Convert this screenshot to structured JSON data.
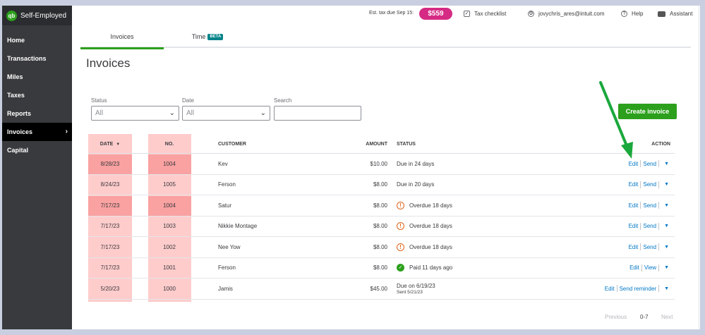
{
  "brand": {
    "name": "Self-Employed",
    "logo": "qb"
  },
  "sidebar": {
    "items": [
      {
        "label": "Home"
      },
      {
        "label": "Transactions"
      },
      {
        "label": "Miles"
      },
      {
        "label": "Taxes"
      },
      {
        "label": "Reports"
      },
      {
        "label": "Invoices",
        "active": true
      },
      {
        "label": "Capital"
      }
    ]
  },
  "topbar": {
    "est_tax_label": "Est. tax due Sep 15:",
    "est_tax_amount": "$559",
    "tax_checklist": "Tax checklist",
    "account_email": "jovychris_ares@intuit.com",
    "help": "Help",
    "assistant": "Assistant"
  },
  "tabs": {
    "invoices": "Invoices",
    "time": "Time",
    "time_badge": "BETA"
  },
  "page_title": "Invoices",
  "filters": {
    "status_label": "Status",
    "status_value": "All",
    "date_label": "Date",
    "date_value": "All",
    "search_label": "Search",
    "search_value": ""
  },
  "create_button": "Create invoice",
  "table": {
    "headers": {
      "date": "DATE",
      "no": "NO.",
      "customer": "CUSTOMER",
      "amount": "AMOUNT",
      "status": "STATUS",
      "action": "ACTION"
    },
    "rows": [
      {
        "date": "8/28/23",
        "no": "1004",
        "customer": "Kev",
        "amount": "$10.00",
        "status": "Due in 24 days",
        "icon": "",
        "a1": "Edit",
        "a2": "Send"
      },
      {
        "date": "8/24/23",
        "no": "1005",
        "customer": "Ferson",
        "amount": "$8.00",
        "status": "Due in 20 days",
        "icon": "",
        "a1": "Edit",
        "a2": "Send"
      },
      {
        "date": "7/17/23",
        "no": "1004",
        "customer": "Satur",
        "amount": "$8.00",
        "status": "Overdue 18 days",
        "icon": "warning",
        "a1": "Edit",
        "a2": "Send"
      },
      {
        "date": "7/17/23",
        "no": "1003",
        "customer": "Nikkie Montage",
        "amount": "$8.00",
        "status": "Overdue 18 days",
        "icon": "warning",
        "a1": "Edit",
        "a2": "Send"
      },
      {
        "date": "7/17/23",
        "no": "1002",
        "customer": "Nee Yow",
        "amount": "$8.00",
        "status": "Overdue 18 days",
        "icon": "warning",
        "a1": "Edit",
        "a2": "Send"
      },
      {
        "date": "7/17/23",
        "no": "1001",
        "customer": "Ferson",
        "amount": "$8.00",
        "status": "Paid 11 days ago",
        "icon": "check",
        "a1": "Edit",
        "a2": "View"
      },
      {
        "date": "5/20/23",
        "no": "1000",
        "customer": "Jamis",
        "amount": "$45.00",
        "status": "Due on 6/19/23",
        "status_sub": "Sent 5/21/23",
        "icon": "",
        "a1": "Edit",
        "a2": "Send reminder"
      }
    ]
  },
  "pager": {
    "previous": "Previous",
    "range": "0-7",
    "next": "Next"
  },
  "colors": {
    "brand_green": "#2ca01c",
    "tax_pink": "#d52b84",
    "link_blue": "#0077c5",
    "sidebar_bg": "#393a3d",
    "annotation_arrow": "#1aa83c",
    "highlight": "#f47a7a"
  }
}
